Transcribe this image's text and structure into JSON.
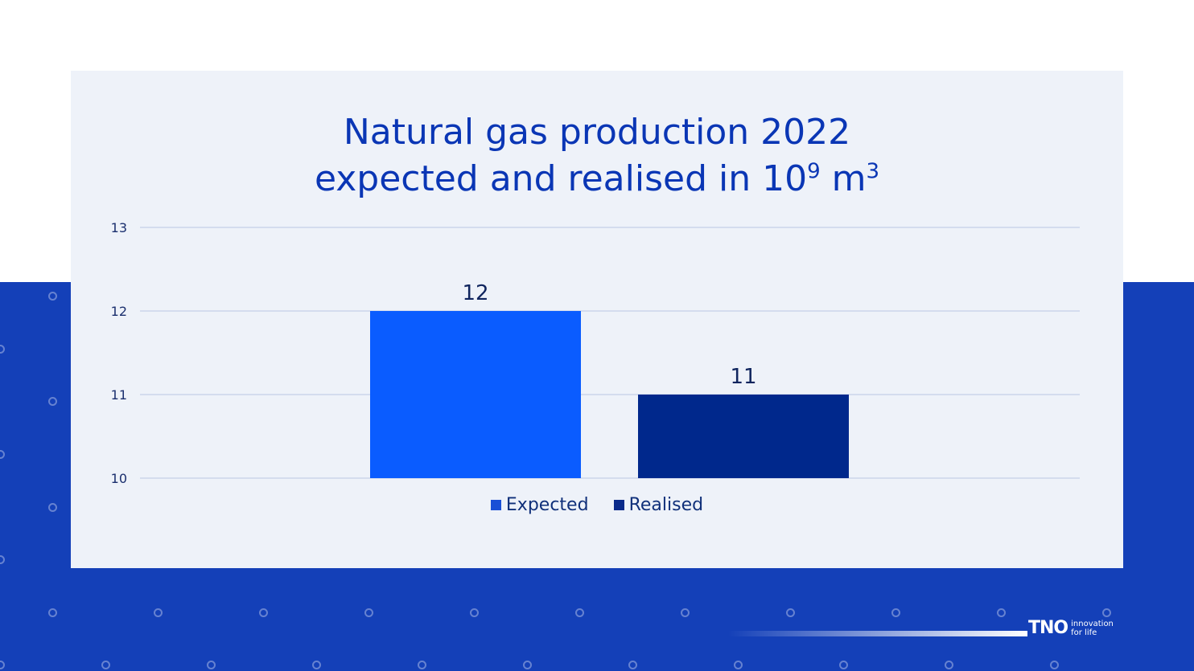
{
  "chart_data": {
    "type": "bar",
    "title_line1": "Natural gas production 2022",
    "title_line2_prefix": "expected and realised in 10",
    "title_exp1": "9",
    "title_unit": " m",
    "title_exp2": "3",
    "categories": [
      "Expected",
      "Realised"
    ],
    "values": [
      12,
      11
    ],
    "data_labels": [
      "12",
      "11"
    ],
    "colors": [
      "#0a5cff",
      "#00288c"
    ],
    "yticks": [
      "10",
      "11",
      "12",
      "13"
    ],
    "ylim": [
      10,
      13
    ],
    "grid": true,
    "legend_position": "bottom"
  },
  "legend": [
    {
      "label": "Expected",
      "color": "#1a4fd6"
    },
    {
      "label": "Realised",
      "color": "#0a2a8a"
    }
  ],
  "brand": {
    "logo": "TNO",
    "tagline_line1": "innovation",
    "tagline_line2": "for life"
  }
}
